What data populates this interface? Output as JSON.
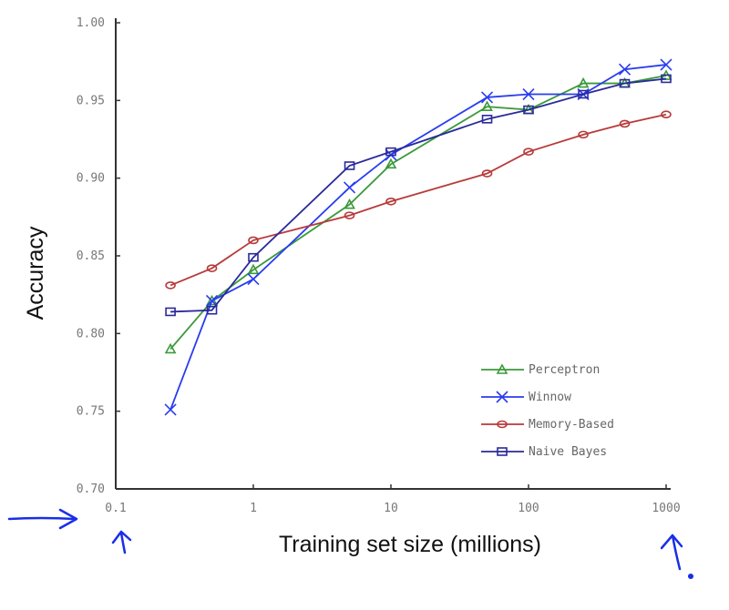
{
  "chart_data": {
    "type": "line",
    "title": "",
    "xlabel": "Training set size (millions)",
    "ylabel": "Accuracy",
    "xscale": "log",
    "xlim": [
      0.1,
      1000
    ],
    "ylim": [
      0.7,
      1.0
    ],
    "xticks": [
      "0.1",
      "1",
      "10",
      "100",
      "1000"
    ],
    "yticks": [
      "0.70",
      "0.75",
      "0.80",
      "0.85",
      "0.90",
      "0.95",
      "1.00"
    ],
    "legend_position": "bottom-right",
    "x": [
      0.25,
      0.5,
      1,
      5,
      10,
      50,
      100,
      250,
      500,
      1000
    ],
    "series": [
      {
        "name": "Perceptron",
        "color": "#3a9a3a",
        "marker": "triangle",
        "values": [
          0.79,
          0.821,
          0.841,
          0.883,
          0.909,
          0.946,
          0.944,
          0.961,
          0.961,
          0.966
        ]
      },
      {
        "name": "Winnow",
        "color": "#2a3cf0",
        "marker": "x",
        "values": [
          0.751,
          0.821,
          0.835,
          0.894,
          0.915,
          0.952,
          0.954,
          0.954,
          0.97,
          0.973
        ]
      },
      {
        "name": "Memory-Based",
        "color": "#b83a3a",
        "marker": "circle",
        "values": [
          0.831,
          0.842,
          0.86,
          0.876,
          0.885,
          0.903,
          0.917,
          0.928,
          0.935,
          0.941
        ]
      },
      {
        "name": "Naive Bayes",
        "color": "#2a2a9a",
        "marker": "square",
        "values": [
          0.814,
          0.815,
          0.849,
          0.908,
          0.917,
          0.938,
          0.944,
          0.954,
          0.961,
          0.964
        ]
      }
    ],
    "annotation_color": "#1a2ee8"
  }
}
